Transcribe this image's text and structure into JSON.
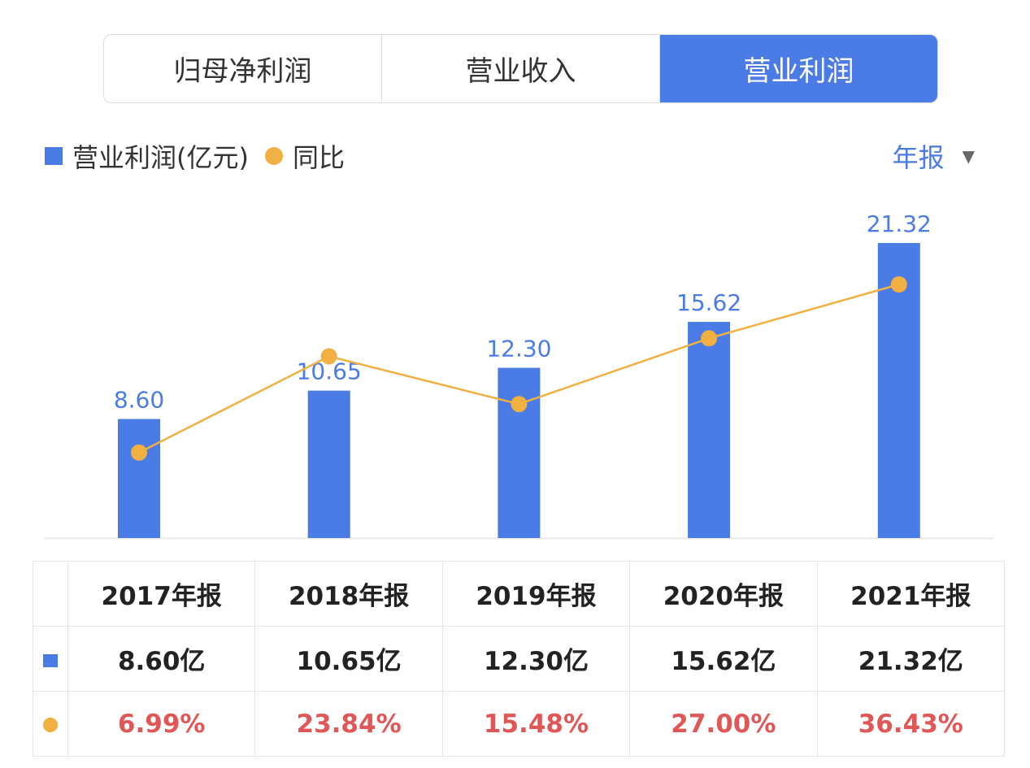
{
  "tabs": [
    {
      "label": "归母净利润",
      "active": false
    },
    {
      "label": "营业收入",
      "active": false
    },
    {
      "label": "营业利润",
      "active": true
    }
  ],
  "legend": {
    "bar_label": "营业利润(亿元)",
    "line_label": "同比"
  },
  "period_select": {
    "value": "年报",
    "icon": "caret-down-icon"
  },
  "colors": {
    "bar": "#4b7be5",
    "line": "#f0b042",
    "yoy_text": "#e05757"
  },
  "chart_data": {
    "type": "bar+line",
    "categories": [
      "2017年报",
      "2018年报",
      "2019年报",
      "2020年报",
      "2021年报"
    ],
    "series": [
      {
        "name": "营业利润(亿元)",
        "type": "bar",
        "values": [
          8.6,
          10.65,
          12.3,
          15.62,
          21.32
        ],
        "data_labels": [
          "8.60",
          "10.65",
          "12.30",
          "15.62",
          "21.32"
        ]
      },
      {
        "name": "同比",
        "type": "line",
        "unit": "%",
        "values": [
          6.99,
          23.84,
          15.48,
          27.0,
          36.43
        ]
      }
    ],
    "grid": false
  },
  "table": {
    "headers": [
      "2017年报",
      "2018年报",
      "2019年报",
      "2020年报",
      "2021年报"
    ],
    "bar_row": [
      "8.60亿",
      "10.65亿",
      "12.30亿",
      "15.62亿",
      "21.32亿"
    ],
    "line_row": [
      "6.99%",
      "23.84%",
      "15.48%",
      "27.00%",
      "36.43%"
    ]
  }
}
